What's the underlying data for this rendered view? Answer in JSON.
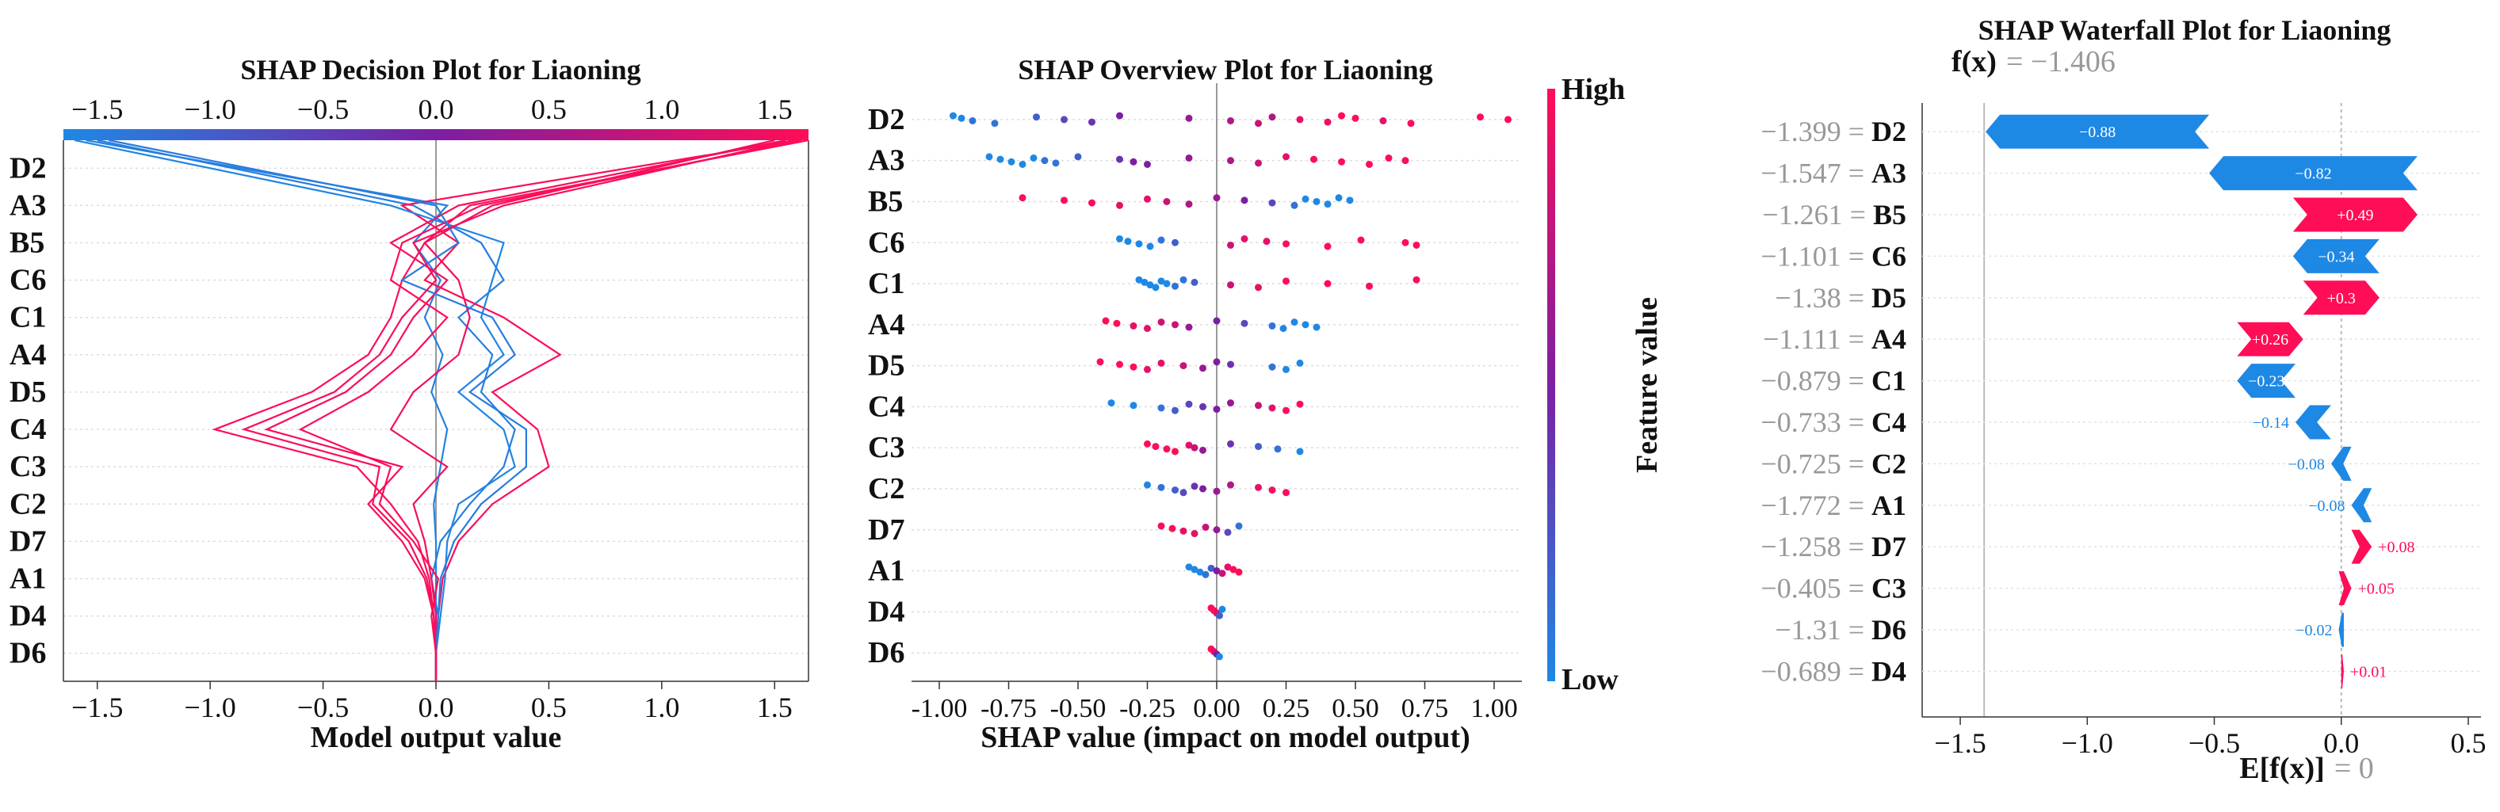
{
  "colors": {
    "low": "#1e88e5",
    "mid": "#7b1fa2",
    "high": "#ff0d57",
    "grid": "#cccccc",
    "axis": "#333333",
    "grey": "#999999"
  },
  "chart_data": [
    {
      "type": "line",
      "title": "SHAP Decision Plot for Liaoning",
      "xlabel": "Model output value",
      "xlim": [
        -1.65,
        1.65
      ],
      "xticks": [
        "−1.5",
        "−1.0",
        "−0.5",
        "0.0",
        "0.5",
        "1.0",
        "1.5"
      ],
      "xtick_values": [
        -1.5,
        -1.0,
        -0.5,
        0.0,
        0.5,
        1.0,
        1.5
      ],
      "features": [
        "D2",
        "A3",
        "B5",
        "C6",
        "C1",
        "A4",
        "D5",
        "C4",
        "C3",
        "C2",
        "D7",
        "A1",
        "D4",
        "D6"
      ],
      "base_value": 0.0,
      "series": [
        {
          "name": "s1",
          "path_values": [
            0,
            0,
            0,
            0,
            0,
            -0.01,
            0.02,
            0.05,
            -0.02,
            0.03,
            -0.05,
            0.02,
            -0.1,
            0.05,
            -1.55
          ]
        },
        {
          "name": "s2",
          "path_values": [
            0,
            0,
            0.01,
            -0.02,
            0.02,
            0.15,
            0.3,
            0.35,
            0.2,
            0.25,
            0.1,
            0.3,
            0.2,
            -0.1,
            -1.5
          ]
        },
        {
          "name": "s3",
          "path_values": [
            0,
            0,
            -0.01,
            -0.03,
            -0.08,
            -0.2,
            -0.35,
            -0.98,
            -0.55,
            -0.3,
            -0.2,
            -0.15,
            -0.05,
            0.15,
            1.65
          ]
        },
        {
          "name": "s4",
          "path_values": [
            0,
            0,
            0.01,
            0.03,
            0.1,
            0.25,
            0.5,
            0.45,
            0.25,
            0.55,
            0.3,
            -0.05,
            0.1,
            -0.15,
            1.6
          ]
        },
        {
          "name": "s5",
          "path_values": [
            0,
            0,
            -0.01,
            -0.05,
            -0.15,
            -0.3,
            -0.15,
            -0.75,
            -0.4,
            -0.2,
            -0.1,
            0.05,
            -0.2,
            0.1,
            1.55
          ]
        },
        {
          "name": "s6",
          "path_values": [
            0,
            0,
            0.02,
            0.04,
            0.05,
            0.1,
            0.35,
            0.3,
            0.1,
            0.3,
            0.2,
            0.25,
            0.3,
            -0.2,
            -1.6
          ]
        },
        {
          "name": "s7",
          "path_values": [
            0,
            0,
            0,
            -0.02,
            -0.05,
            -0.1,
            0.05,
            -0.2,
            -0.1,
            0.1,
            0.15,
            0.1,
            -0.05,
            0.25,
            1.5
          ]
        },
        {
          "name": "s8",
          "path_values": [
            0,
            0,
            -0.02,
            0.01,
            -0.1,
            -0.25,
            -0.2,
            -0.6,
            -0.3,
            -0.1,
            0.05,
            -0.2,
            -0.15,
            0.2,
            1.62
          ]
        },
        {
          "name": "s9",
          "path_values": [
            0,
            0,
            0.01,
            0.02,
            0.08,
            0.2,
            0.4,
            0.4,
            0.15,
            0.35,
            0.25,
            -0.15,
            0.1,
            0.0,
            -1.45
          ]
        },
        {
          "name": "s10",
          "path_values": [
            0,
            0,
            -0.01,
            -0.04,
            -0.12,
            -0.28,
            -0.25,
            -0.85,
            -0.45,
            -0.25,
            -0.15,
            0.0,
            -0.1,
            0.3,
            1.58
          ]
        }
      ]
    },
    {
      "type": "scatter",
      "title": "SHAP Overview Plot for Liaoning",
      "xlabel": "SHAP value (impact on model output)",
      "xlim": [
        -1.1,
        1.1
      ],
      "xticks": [
        "-1.00",
        "-0.75",
        "-0.50",
        "-0.25",
        "0.00",
        "0.25",
        "0.50",
        "0.75",
        "1.00"
      ],
      "xtick_values": [
        -1.0,
        -0.75,
        -0.5,
        -0.25,
        0.0,
        0.25,
        0.5,
        0.75,
        1.0
      ],
      "features": [
        "D2",
        "A3",
        "B5",
        "C6",
        "C1",
        "A4",
        "D5",
        "C4",
        "C3",
        "C2",
        "D7",
        "A1",
        "D4",
        "D6"
      ],
      "colorbar": {
        "label": "Feature value",
        "high": "High",
        "low": "Low"
      },
      "points": [
        {
          "f": "D2",
          "x": [
            -0.95,
            -0.92,
            -0.88,
            -0.8,
            -0.65,
            -0.55,
            -0.45,
            -0.35,
            -0.1,
            0.05,
            0.15,
            0.2,
            0.3,
            0.4,
            0.45,
            0.5,
            0.6,
            0.7,
            0.95,
            1.05
          ],
          "c": [
            0,
            0,
            0.1,
            0.1,
            0.2,
            0.3,
            0.4,
            0.5,
            0.6,
            0.7,
            0.8,
            0.7,
            0.9,
            0.95,
            1,
            1,
            0.9,
            1,
            1,
            1
          ]
        },
        {
          "f": "A3",
          "x": [
            -0.82,
            -0.78,
            -0.74,
            -0.7,
            -0.66,
            -0.62,
            -0.58,
            -0.5,
            -0.35,
            -0.3,
            -0.25,
            -0.1,
            0.05,
            0.15,
            0.25,
            0.35,
            0.45,
            0.55,
            0.62,
            0.68
          ],
          "c": [
            0,
            0,
            0,
            0,
            0,
            0.1,
            0.1,
            0.2,
            0.4,
            0.5,
            0.5,
            0.6,
            0.7,
            0.8,
            0.9,
            1,
            1,
            1,
            1,
            1
          ]
        },
        {
          "f": "B5",
          "x": [
            -0.7,
            -0.55,
            -0.45,
            -0.35,
            -0.25,
            -0.18,
            -0.1,
            0.0,
            0.1,
            0.2,
            0.28,
            0.32,
            0.36,
            0.4,
            0.44,
            0.48
          ],
          "c": [
            1,
            1,
            1,
            0.9,
            0.9,
            0.8,
            0.7,
            0.6,
            0.5,
            0.3,
            0.1,
            0,
            0,
            0,
            0,
            0
          ]
        },
        {
          "f": "C6",
          "x": [
            -0.35,
            -0.32,
            -0.28,
            -0.24,
            -0.2,
            -0.15,
            0.05,
            0.1,
            0.18,
            0.25,
            0.4,
            0.52,
            0.68,
            0.72
          ],
          "c": [
            0,
            0,
            0,
            0,
            0.1,
            0.2,
            0.8,
            0.9,
            0.9,
            1,
            1,
            1,
            1,
            1
          ]
        },
        {
          "f": "C1",
          "x": [
            -0.28,
            -0.26,
            -0.24,
            -0.22,
            -0.2,
            -0.18,
            -0.15,
            -0.12,
            -0.08,
            0.05,
            0.15,
            0.25,
            0.4,
            0.55,
            0.72
          ],
          "c": [
            0,
            0,
            0,
            0,
            0,
            0,
            0.1,
            0.1,
            0.2,
            0.8,
            0.9,
            1,
            1,
            1,
            1
          ]
        },
        {
          "f": "A4",
          "x": [
            -0.4,
            -0.36,
            -0.3,
            -0.25,
            -0.2,
            -0.15,
            -0.1,
            0.0,
            0.1,
            0.2,
            0.24,
            0.28,
            0.32,
            0.36
          ],
          "c": [
            1,
            1,
            0.9,
            0.9,
            0.8,
            0.8,
            0.6,
            0.5,
            0.3,
            0.1,
            0,
            0,
            0,
            0
          ]
        },
        {
          "f": "D5",
          "x": [
            -0.42,
            -0.35,
            -0.3,
            -0.25,
            -0.2,
            -0.12,
            -0.05,
            0.0,
            0.05,
            0.2,
            0.25,
            0.3
          ],
          "c": [
            1,
            1,
            1,
            0.9,
            0.9,
            0.8,
            0.6,
            0.5,
            0.4,
            0.1,
            0,
            0
          ]
        },
        {
          "f": "C4",
          "x": [
            -0.38,
            -0.3,
            -0.2,
            -0.15,
            -0.1,
            -0.05,
            0.0,
            0.05,
            0.15,
            0.2,
            0.25,
            0.3
          ],
          "c": [
            0,
            0,
            0.1,
            0.2,
            0.3,
            0.4,
            0.5,
            0.6,
            0.8,
            0.9,
            1,
            1
          ]
        },
        {
          "f": "C3",
          "x": [
            -0.25,
            -0.22,
            -0.18,
            -0.15,
            -0.1,
            -0.08,
            -0.05,
            0.05,
            0.15,
            0.22,
            0.3
          ],
          "c": [
            1,
            1,
            1,
            1,
            0.9,
            0.8,
            0.6,
            0.4,
            0.2,
            0.1,
            0
          ]
        },
        {
          "f": "C2",
          "x": [
            -0.25,
            -0.2,
            -0.15,
            -0.12,
            -0.08,
            -0.05,
            0.0,
            0.05,
            0.15,
            0.2,
            0.25
          ],
          "c": [
            0,
            0.1,
            0.2,
            0.3,
            0.4,
            0.5,
            0.6,
            0.7,
            0.9,
            1,
            1
          ]
        },
        {
          "f": "D7",
          "x": [
            -0.2,
            -0.16,
            -0.12,
            -0.08,
            -0.04,
            0.0,
            0.04,
            0.08
          ],
          "c": [
            1,
            1,
            0.9,
            0.9,
            0.8,
            0.6,
            0.3,
            0.1
          ]
        },
        {
          "f": "A1",
          "x": [
            -0.1,
            -0.08,
            -0.06,
            -0.04,
            -0.02,
            0.0,
            0.02,
            0.04,
            0.06,
            0.08
          ],
          "c": [
            0,
            0,
            0,
            0.1,
            0.2,
            0.5,
            0.8,
            0.9,
            1,
            1
          ]
        },
        {
          "f": "D4",
          "x": [
            -0.02,
            -0.01,
            0.0,
            0.01,
            0.02
          ],
          "c": [
            1,
            1,
            0.9,
            0.2,
            0
          ]
        },
        {
          "f": "D6",
          "x": [
            -0.02,
            -0.01,
            0.0,
            0.01
          ],
          "c": [
            1,
            0.9,
            0.5,
            0
          ]
        }
      ]
    },
    {
      "type": "bar",
      "title": "SHAP Waterfall Plot for Liaoning",
      "fx_label": "f(x)",
      "fx_value": "= −1.406",
      "fx_numeric": -1.406,
      "efx_label": "E[f(x)]",
      "efx_value": "= 0",
      "base_value": 0.0,
      "xlim": [
        -1.65,
        0.55
      ],
      "xticks": [
        "−1.5",
        "−1.0",
        "−0.5",
        "0.0",
        "0.5"
      ],
      "xtick_values": [
        -1.5,
        -1.0,
        -0.5,
        0.0,
        0.5
      ],
      "rows": [
        {
          "value_label": "−1.399 =",
          "feature": "D2",
          "shap": -0.88,
          "label": "−0.88"
        },
        {
          "value_label": "−1.547 =",
          "feature": "A3",
          "shap": -0.82,
          "label": "−0.82"
        },
        {
          "value_label": "−1.261 =",
          "feature": "B5",
          "shap": 0.49,
          "label": "+0.49"
        },
        {
          "value_label": "−1.101 =",
          "feature": "C6",
          "shap": -0.34,
          "label": "−0.34"
        },
        {
          "value_label": "−1.38 =",
          "feature": "D5",
          "shap": 0.3,
          "label": "+0.3"
        },
        {
          "value_label": "−1.111 =",
          "feature": "A4",
          "shap": 0.26,
          "label": "+0.26"
        },
        {
          "value_label": "−0.879 =",
          "feature": "C1",
          "shap": -0.23,
          "label": "−0.23"
        },
        {
          "value_label": "−0.733 =",
          "feature": "C4",
          "shap": -0.14,
          "label": "−0.14"
        },
        {
          "value_label": "−0.725 =",
          "feature": "C2",
          "shap": -0.08,
          "label": "−0.08"
        },
        {
          "value_label": "−1.772 =",
          "feature": "A1",
          "shap": -0.08,
          "label": "−0.08"
        },
        {
          "value_label": "−1.258 =",
          "feature": "D7",
          "shap": 0.08,
          "label": "+0.08"
        },
        {
          "value_label": "−0.405 =",
          "feature": "C3",
          "shap": 0.05,
          "label": "+0.05"
        },
        {
          "value_label": "−1.31 =",
          "feature": "D6",
          "shap": -0.02,
          "label": "−0.02"
        },
        {
          "value_label": "−0.689 =",
          "feature": "D4",
          "shap": 0.01,
          "label": "+0.01"
        }
      ]
    }
  ]
}
